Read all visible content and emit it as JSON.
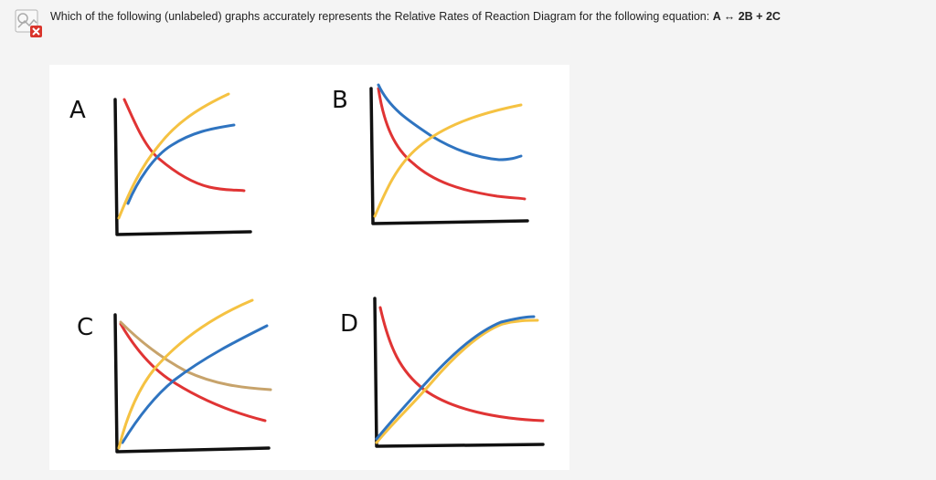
{
  "question": {
    "text": "Which of the following (unlabeled) graphs accurately represents the Relative Rates of Reaction Diagram for the following equation:",
    "equation": "A ↔ 2B + 2C"
  },
  "icons": {
    "status": "broken-image-icon",
    "error": "red-x-icon"
  },
  "colors": {
    "red": "#e03434",
    "blue": "#2f74c0",
    "yellow": "#f5c242",
    "tan": "#c7a36b",
    "axis": "#111111"
  },
  "panels": [
    {
      "id": "A",
      "label": "A"
    },
    {
      "id": "B",
      "label": "B"
    },
    {
      "id": "C",
      "label": "C"
    },
    {
      "id": "D",
      "label": "D"
    }
  ]
}
